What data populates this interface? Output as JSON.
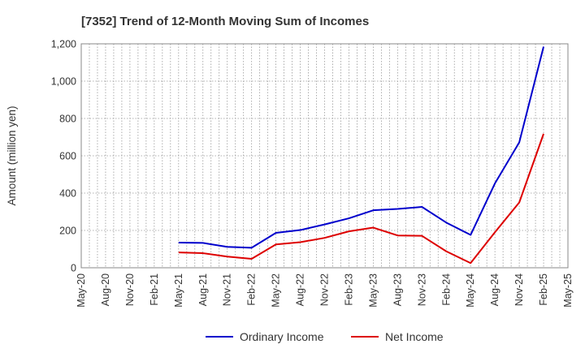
{
  "chart_data": {
    "type": "line",
    "title": "[7352]  Trend of 12-Month Moving Sum of Incomes",
    "xlabel": "",
    "ylabel": "Amount (million yen)",
    "ylim": [
      0,
      1200
    ],
    "yticks": [
      0,
      200,
      400,
      600,
      800,
      1000,
      1200
    ],
    "ytick_labels": [
      "0",
      "200",
      "400",
      "600",
      "800",
      "1,000",
      "1,200"
    ],
    "categories": [
      "May-20",
      "Aug-20",
      "Nov-20",
      "Feb-21",
      "May-21",
      "Aug-21",
      "Nov-21",
      "Feb-22",
      "May-22",
      "Aug-22",
      "Nov-22",
      "Feb-23",
      "May-23",
      "Aug-23",
      "Nov-23",
      "Feb-24",
      "May-24",
      "Aug-24",
      "Nov-24",
      "Feb-25",
      "May-25"
    ],
    "grid": true,
    "legend_position": "bottom",
    "series": [
      {
        "name": "Ordinary Income",
        "color": "#0000cc",
        "values": [
          null,
          null,
          null,
          null,
          135,
          133,
          112,
          107,
          187,
          202,
          232,
          265,
          308,
          315,
          326,
          242,
          176,
          452,
          672,
          1185,
          null
        ]
      },
      {
        "name": "Net Income",
        "color": "#dd0000",
        "values": [
          null,
          null,
          null,
          null,
          82,
          78,
          60,
          48,
          125,
          137,
          160,
          195,
          215,
          173,
          171,
          88,
          25,
          190,
          350,
          718,
          null
        ]
      }
    ]
  }
}
